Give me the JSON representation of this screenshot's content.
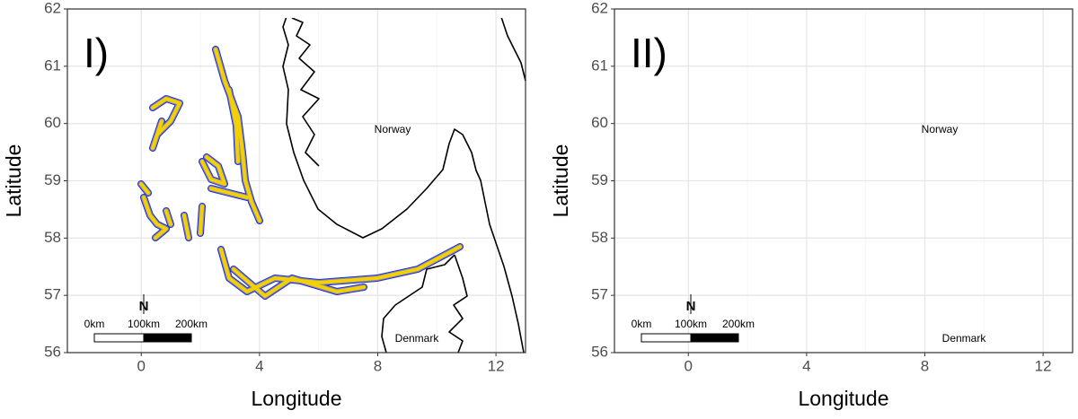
{
  "panels": [
    {
      "label": "I)",
      "xlabel": "Longitude",
      "ylabel": "Latitude",
      "xlim": [
        -2.5,
        13
      ],
      "ylim": [
        56,
        62
      ],
      "xticks": [
        0,
        4,
        8,
        12
      ],
      "yticks": [
        56,
        57,
        58,
        59,
        60,
        61,
        62
      ],
      "country_labels": [
        "Norway",
        "Denmark"
      ],
      "scale_bar": [
        "0km",
        "100km",
        "200km"
      ],
      "north": "N"
    },
    {
      "label": "II)",
      "xlabel": "Longitude",
      "ylabel": "Latitude",
      "xlim": [
        -2.5,
        13
      ],
      "ylim": [
        56,
        62
      ],
      "xticks": [
        0,
        4,
        8,
        12
      ],
      "yticks": [
        56,
        57,
        58,
        59,
        60,
        61,
        62
      ],
      "country_labels": [
        "Norway",
        "Denmark"
      ],
      "scale_bar": [
        "0km",
        "100km",
        "200km"
      ],
      "north": "N"
    }
  ]
}
